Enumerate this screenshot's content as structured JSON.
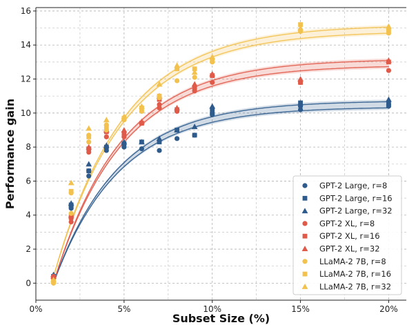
{
  "chart_data": {
    "type": "scatter",
    "xlabel": "Subset Size (%)",
    "ylabel": "Performance gain",
    "xlim": [
      0,
      21
    ],
    "ylim": [
      -1,
      16.2
    ],
    "x_ticks": [
      0,
      5,
      10,
      15,
      20
    ],
    "x_tick_labels": [
      "0%",
      "5%",
      "10%",
      "15%",
      "20%"
    ],
    "y_ticks": [
      0,
      2,
      4,
      6,
      8,
      10,
      12,
      14,
      16
    ],
    "y_tick_labels": [
      "0",
      "2",
      "4",
      "6",
      "8",
      "10",
      "12",
      "14",
      "16"
    ],
    "grid": true,
    "legend_position": "bottom-right",
    "colors": {
      "gpt2_large": "#2e5b8c",
      "gpt2_xl": "#e05a4a",
      "llama2_7b": "#f2c14e"
    },
    "fit_curves": [
      {
        "family": "gpt2_large",
        "color": "#2e5b8c",
        "asymptote": 10.55,
        "rate": 0.27,
        "x0": 1.0
      },
      {
        "family": "gpt2_xl",
        "color": "#e05a4a",
        "asymptote": 13.0,
        "rate": 0.26,
        "x0": 1.0
      },
      {
        "family": "llama2_7b",
        "color": "#f2c14e",
        "asymptote": 15.0,
        "rate": 0.25,
        "x0": 0.9
      }
    ],
    "series": [
      {
        "name": "GPT-2 Large, r=8",
        "color": "#2e5b8c",
        "marker": "circle",
        "x": [
          1,
          1,
          2,
          2,
          3,
          3,
          4,
          4,
          5,
          5,
          6,
          7,
          8,
          9,
          10,
          10,
          15,
          15,
          20,
          20
        ],
        "y": [
          0.3,
          0.4,
          4.4,
          4.5,
          6.3,
          6.6,
          7.8,
          8.0,
          8.0,
          8.2,
          7.9,
          7.8,
          8.5,
          8.7,
          9.9,
          10.0,
          10.2,
          10.4,
          10.4,
          10.5
        ]
      },
      {
        "name": "GPT-2 Large, r=16",
        "color": "#2e5b8c",
        "marker": "square",
        "x": [
          1,
          2,
          3,
          4,
          5,
          6,
          7,
          8,
          9,
          10,
          15,
          20
        ],
        "y": [
          0.4,
          4.6,
          6.6,
          8.0,
          8.2,
          8.3,
          8.3,
          9.0,
          8.7,
          10.2,
          10.6,
          10.6
        ]
      },
      {
        "name": "GPT-2 Large, r=32",
        "color": "#2e5b8c",
        "marker": "triangle",
        "x": [
          1,
          2,
          3,
          4,
          5,
          6,
          7,
          8,
          9,
          10,
          15,
          20
        ],
        "y": [
          0.5,
          4.7,
          7.0,
          8.1,
          8.3,
          8.3,
          8.5,
          9.0,
          9.2,
          10.4,
          10.6,
          10.8
        ]
      },
      {
        "name": "GPT-2 XL, r=8",
        "color": "#e05a4a",
        "marker": "circle",
        "x": [
          1,
          1,
          2,
          2,
          3,
          3,
          4,
          4,
          5,
          6,
          7,
          7,
          8,
          9,
          10,
          15,
          20
        ],
        "y": [
          0.3,
          0.4,
          3.6,
          3.8,
          7.7,
          7.9,
          8.6,
          8.9,
          8.6,
          9.4,
          10.3,
          10.5,
          10.1,
          11.3,
          11.8,
          11.8,
          12.5
        ]
      },
      {
        "name": "GPT-2 XL, r=16",
        "color": "#e05a4a",
        "marker": "square",
        "x": [
          1,
          2,
          3,
          4,
          5,
          6,
          7,
          8,
          9,
          10,
          15,
          20
        ],
        "y": [
          0.3,
          3.9,
          7.9,
          8.9,
          8.8,
          9.4,
          10.8,
          10.2,
          11.5,
          12.2,
          11.8,
          13.0
        ]
      },
      {
        "name": "GPT-2 XL, r=32",
        "color": "#e05a4a",
        "marker": "triangle",
        "x": [
          1,
          2,
          3,
          4,
          5,
          6,
          7,
          8,
          9,
          10,
          15,
          20
        ],
        "y": [
          0.4,
          4.0,
          8.0,
          9.0,
          9.0,
          9.5,
          11.0,
          10.3,
          11.7,
          12.3,
          12.0,
          13.1
        ]
      },
      {
        "name": "LLaMA-2 7B, r=8",
        "color": "#f2c14e",
        "marker": "circle",
        "x": [
          1,
          1,
          2,
          2,
          3,
          3,
          4,
          4,
          5,
          6,
          7,
          8,
          9,
          10,
          15,
          20
        ],
        "y": [
          0.0,
          0.1,
          4.1,
          5.3,
          8.3,
          8.7,
          9.0,
          9.3,
          9.6,
          10.1,
          10.9,
          11.9,
          12.1,
          13.0,
          14.8,
          14.7
        ]
      },
      {
        "name": "LLaMA-2 7B, r=16",
        "color": "#f2c14e",
        "marker": "square",
        "x": [
          1,
          2,
          3,
          4,
          5,
          6,
          7,
          8,
          9,
          10,
          15,
          20
        ],
        "y": [
          0.1,
          5.4,
          8.6,
          9.2,
          9.7,
          10.3,
          11.0,
          12.6,
          12.6,
          13.1,
          15.2,
          14.9
        ]
      },
      {
        "name": "LLaMA-2 7B, r=32",
        "color": "#f2c14e",
        "marker": "triangle",
        "x": [
          1,
          2,
          3,
          4,
          5,
          6,
          7,
          8,
          9,
          10,
          15,
          20
        ],
        "y": [
          0.2,
          5.9,
          9.1,
          9.6,
          9.8,
          10.4,
          11.7,
          12.8,
          12.4,
          13.3,
          15.0,
          15.1
        ]
      }
    ]
  }
}
